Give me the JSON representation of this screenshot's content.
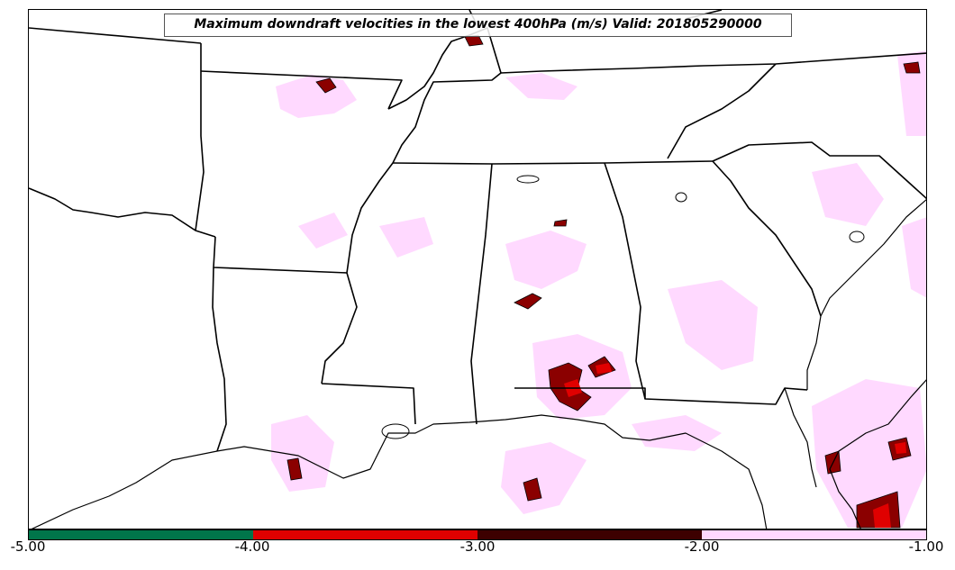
{
  "title": "Maximum downdraft velocities in the lowest 400hPa (m/s) Valid: 201805290000",
  "colorbar": {
    "ticks": [
      "-5.00",
      "-4.00",
      "-3.00",
      "-2.00",
      "-1.00"
    ],
    "bins": [
      {
        "range": [
          -5.0,
          -4.0
        ],
        "color": "#00754a"
      },
      {
        "range": [
          -4.0,
          -3.0
        ],
        "color": "#e00000"
      },
      {
        "range": [
          -3.0,
          -2.0
        ],
        "color": "#3d0000"
      },
      {
        "range": [
          -2.0,
          -1.0
        ],
        "color": "#ffd9ff"
      }
    ]
  },
  "colors": {
    "outline": "#000000",
    "light_fill": "#ffd9ff",
    "dark_fill": "#8b0000",
    "strong_fill": "#e00000"
  }
}
